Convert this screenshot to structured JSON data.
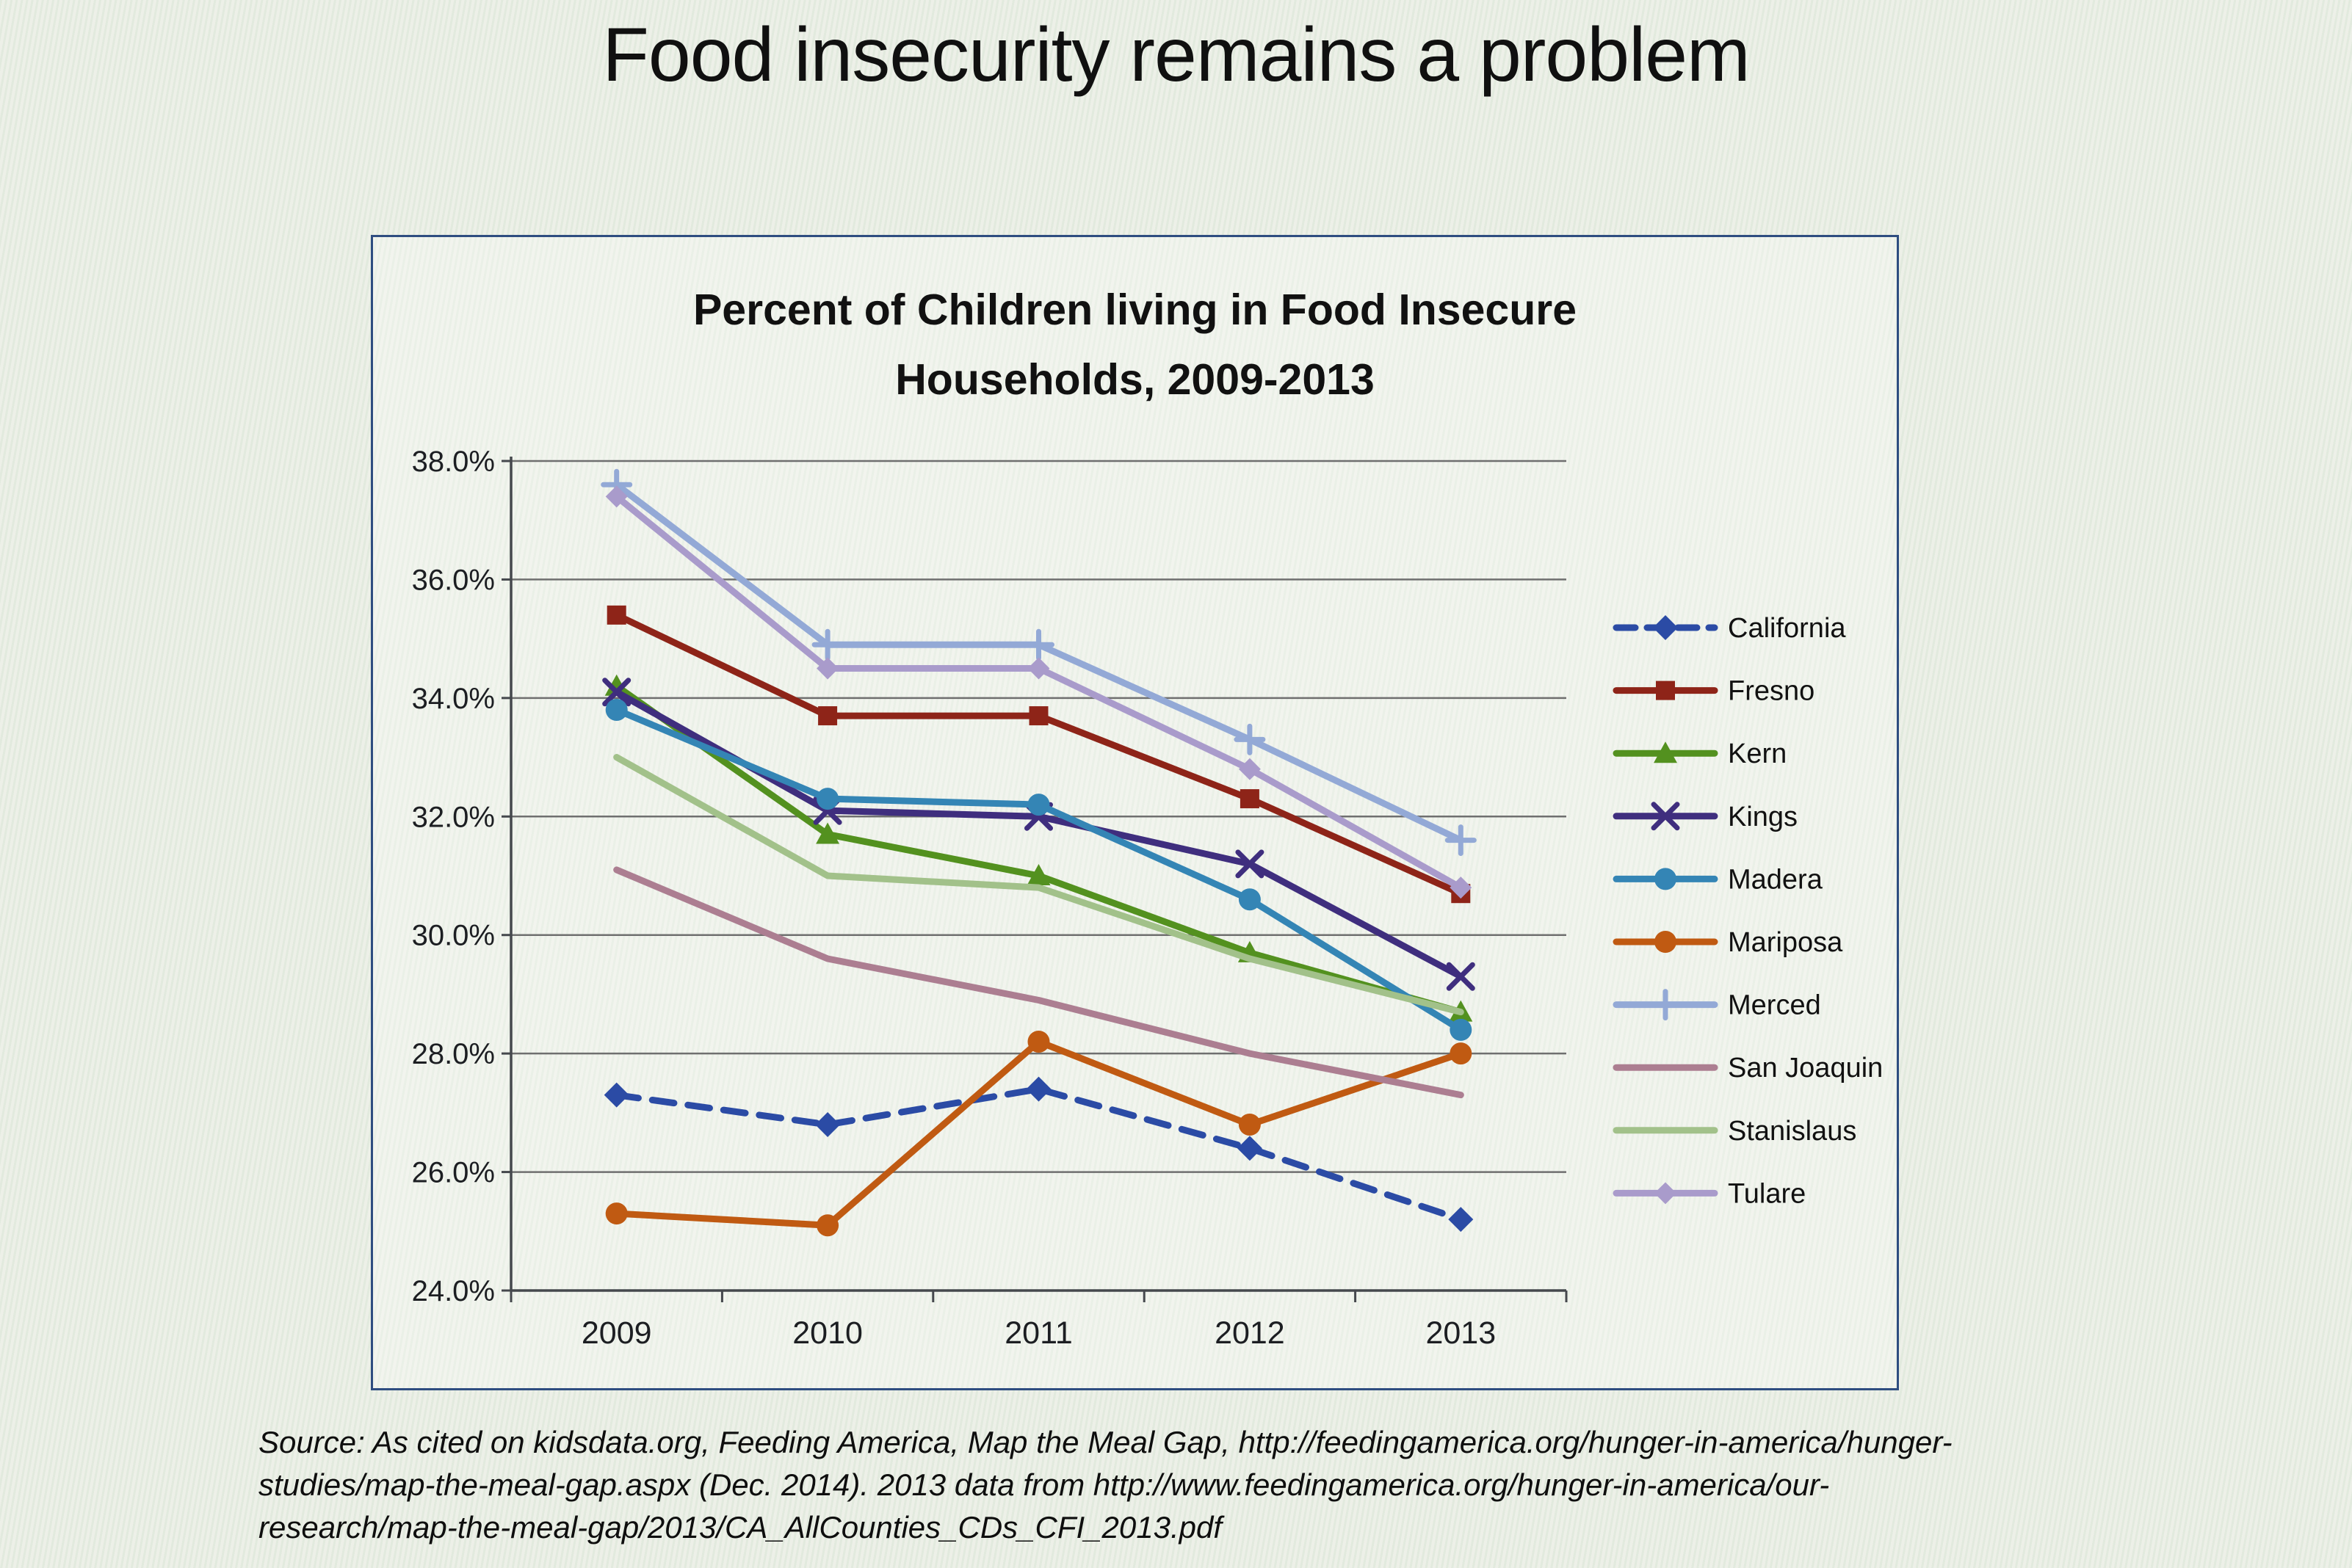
{
  "slide": {
    "title": "Food insecurity remains a problem",
    "source_lines": [
      "Source: As cited on kidsdata.org, Feeding America, Map the Meal Gap, http://feedingamerica.org/hunger-in-america/hunger-",
      "studies/map-the-meal-gap.aspx (Dec. 2014). 2013 data from http://www.feedingamerica.org/hunger-in-america/our-",
      "research/map-the-meal-gap/2013/CA_AllCounties_CDs_CFI_2013.pdf"
    ]
  },
  "chart": {
    "title_line1": "Percent of Children living in Food Insecure",
    "title_line2": "Households, 2009-2013",
    "border_color": "#2e4d80",
    "gridline_color": "#6f6f6f",
    "axis_color": "#45484d",
    "label_color": "#1c1e22",
    "legend_text_color": "#111111"
  },
  "chart_data": {
    "type": "line",
    "title": "Percent of Children living in Food Insecure Households, 2009-2013",
    "x": [
      "2009",
      "2010",
      "2011",
      "2012",
      "2013"
    ],
    "xlabel": "",
    "ylabel": "",
    "ylim": [
      24,
      38
    ],
    "ytick_step": 2,
    "ytick_suffix": "%",
    "grid": true,
    "legend_position": "right",
    "series": [
      {
        "name": "California",
        "color": "#2b4ba5",
        "marker": "diamond",
        "dashed": true,
        "values": [
          27.3,
          26.8,
          27.4,
          26.4,
          25.2
        ]
      },
      {
        "name": "Fresno",
        "color": "#8e2418",
        "marker": "square",
        "dashed": false,
        "values": [
          35.4,
          33.7,
          33.7,
          32.3,
          30.7
        ]
      },
      {
        "name": "Kern",
        "color": "#53911f",
        "marker": "triangle",
        "dashed": false,
        "values": [
          34.2,
          31.7,
          31.0,
          29.7,
          28.7
        ]
      },
      {
        "name": "Kings",
        "color": "#3f2e7e",
        "marker": "x",
        "dashed": false,
        "values": [
          34.1,
          32.1,
          32.0,
          31.2,
          29.3
        ]
      },
      {
        "name": "Madera",
        "color": "#3485b5",
        "marker": "circle",
        "dashed": false,
        "values": [
          33.8,
          32.3,
          32.2,
          30.6,
          28.4
        ]
      },
      {
        "name": "Mariposa",
        "color": "#c05a12",
        "marker": "circle",
        "dashed": false,
        "values": [
          25.3,
          25.1,
          28.2,
          26.8,
          28.0
        ]
      },
      {
        "name": "Merced",
        "color": "#93a9d6",
        "marker": "plus",
        "dashed": false,
        "values": [
          37.6,
          34.9,
          34.9,
          33.3,
          31.6
        ]
      },
      {
        "name": "San Joaquin",
        "color": "#ac7e91",
        "marker": "none",
        "dashed": false,
        "values": [
          31.1,
          29.6,
          28.9,
          28.0,
          27.3
        ]
      },
      {
        "name": "Stanislaus",
        "color": "#a2c18a",
        "marker": "none",
        "dashed": false,
        "values": [
          33.0,
          31.0,
          30.8,
          29.6,
          28.7
        ]
      },
      {
        "name": "Tulare",
        "color": "#a99bcb",
        "marker": "diamond",
        "dashed": false,
        "values": [
          37.4,
          34.5,
          34.5,
          32.8,
          30.8
        ]
      }
    ]
  }
}
